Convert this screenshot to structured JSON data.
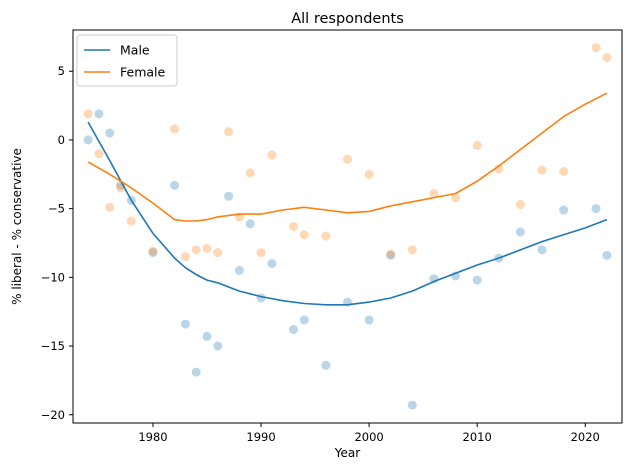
{
  "chart_data": {
    "type": "line",
    "title": "All respondents",
    "xlabel": "Year",
    "ylabel": "% liberal - % conservative",
    "xlim": [
      1972.6,
      2023.4
    ],
    "ylim": [
      -20.6,
      8.0
    ],
    "xticks": [
      1980,
      1990,
      2000,
      2010,
      2020
    ],
    "yticks": [
      -20,
      -15,
      -10,
      -5,
      0,
      5
    ],
    "grid": false,
    "legend_position": "top-left",
    "series": [
      {
        "name": "Male",
        "color": "#1f77b4",
        "points": [
          [
            1974,
            0.0
          ],
          [
            1975,
            1.9
          ],
          [
            1976,
            0.5
          ],
          [
            1977,
            -3.3
          ],
          [
            1978,
            -4.4
          ],
          [
            1980,
            -8.2
          ],
          [
            1982,
            -3.3
          ],
          [
            1983,
            -13.4
          ],
          [
            1984,
            -16.9
          ],
          [
            1985,
            -14.3
          ],
          [
            1986,
            -15.0
          ],
          [
            1987,
            -4.1
          ],
          [
            1988,
            -9.5
          ],
          [
            1989,
            -6.1
          ],
          [
            1990,
            -11.5
          ],
          [
            1991,
            -9.0
          ],
          [
            1993,
            -13.8
          ],
          [
            1994,
            -13.1
          ],
          [
            1996,
            -16.4
          ],
          [
            1998,
            -11.8
          ],
          [
            2000,
            -13.1
          ],
          [
            2002,
            -8.4
          ],
          [
            2004,
            -19.3
          ],
          [
            2006,
            -10.1
          ],
          [
            2008,
            -9.9
          ],
          [
            2010,
            -10.2
          ],
          [
            2012,
            -8.6
          ],
          [
            2014,
            -6.7
          ],
          [
            2016,
            -8.0
          ],
          [
            2018,
            -5.1
          ],
          [
            2021,
            -5.0
          ],
          [
            2022,
            -8.4
          ]
        ],
        "trend": [
          [
            1974,
            1.3
          ],
          [
            1976,
            -1.5
          ],
          [
            1978,
            -4.4
          ],
          [
            1980,
            -6.8
          ],
          [
            1982,
            -8.6
          ],
          [
            1983,
            -9.3
          ],
          [
            1984,
            -9.8
          ],
          [
            1985,
            -10.2
          ],
          [
            1986,
            -10.4
          ],
          [
            1987,
            -10.7
          ],
          [
            1988,
            -11.0
          ],
          [
            1989,
            -11.2
          ],
          [
            1990,
            -11.4
          ],
          [
            1992,
            -11.7
          ],
          [
            1994,
            -11.9
          ],
          [
            1996,
            -12.0
          ],
          [
            1998,
            -12.0
          ],
          [
            2000,
            -11.8
          ],
          [
            2002,
            -11.5
          ],
          [
            2004,
            -11.0
          ],
          [
            2006,
            -10.3
          ],
          [
            2008,
            -9.7
          ],
          [
            2010,
            -9.1
          ],
          [
            2012,
            -8.6
          ],
          [
            2014,
            -8.0
          ],
          [
            2016,
            -7.4
          ],
          [
            2018,
            -6.9
          ],
          [
            2020,
            -6.4
          ],
          [
            2022,
            -5.8
          ]
        ]
      },
      {
        "name": "Female",
        "color": "#ff7f0e",
        "points": [
          [
            1974,
            1.9
          ],
          [
            1975,
            -1.0
          ],
          [
            1976,
            -4.9
          ],
          [
            1977,
            -3.5
          ],
          [
            1978,
            -5.9
          ],
          [
            1980,
            -8.1
          ],
          [
            1982,
            0.8
          ],
          [
            1983,
            -8.5
          ],
          [
            1984,
            -8.0
          ],
          [
            1985,
            -7.9
          ],
          [
            1986,
            -8.2
          ],
          [
            1987,
            0.6
          ],
          [
            1988,
            -5.6
          ],
          [
            1989,
            -2.4
          ],
          [
            1990,
            -8.2
          ],
          [
            1991,
            -1.1
          ],
          [
            1993,
            -6.3
          ],
          [
            1994,
            -6.9
          ],
          [
            1996,
            -7.0
          ],
          [
            1998,
            -1.4
          ],
          [
            2000,
            -2.5
          ],
          [
            2002,
            -8.3
          ],
          [
            2004,
            -8.0
          ],
          [
            2006,
            -3.9
          ],
          [
            2008,
            -4.2
          ],
          [
            2010,
            -0.4
          ],
          [
            2012,
            -2.1
          ],
          [
            2014,
            -4.7
          ],
          [
            2016,
            -2.2
          ],
          [
            2018,
            -2.3
          ],
          [
            2021,
            6.7
          ],
          [
            2022,
            6.0
          ]
        ],
        "trend": [
          [
            1974,
            -1.6
          ],
          [
            1976,
            -2.5
          ],
          [
            1978,
            -3.5
          ],
          [
            1980,
            -4.6
          ],
          [
            1982,
            -5.8
          ],
          [
            1983,
            -5.9
          ],
          [
            1984,
            -5.9
          ],
          [
            1985,
            -5.8
          ],
          [
            1986,
            -5.6
          ],
          [
            1988,
            -5.4
          ],
          [
            1990,
            -5.4
          ],
          [
            1992,
            -5.1
          ],
          [
            1994,
            -4.9
          ],
          [
            1996,
            -5.1
          ],
          [
            1998,
            -5.3
          ],
          [
            2000,
            -5.2
          ],
          [
            2002,
            -4.8
          ],
          [
            2004,
            -4.5
          ],
          [
            2006,
            -4.2
          ],
          [
            2008,
            -3.9
          ],
          [
            2010,
            -3.0
          ],
          [
            2012,
            -1.9
          ],
          [
            2014,
            -0.7
          ],
          [
            2016,
            0.5
          ],
          [
            2018,
            1.7
          ],
          [
            2020,
            2.6
          ],
          [
            2022,
            3.4
          ]
        ]
      }
    ]
  }
}
